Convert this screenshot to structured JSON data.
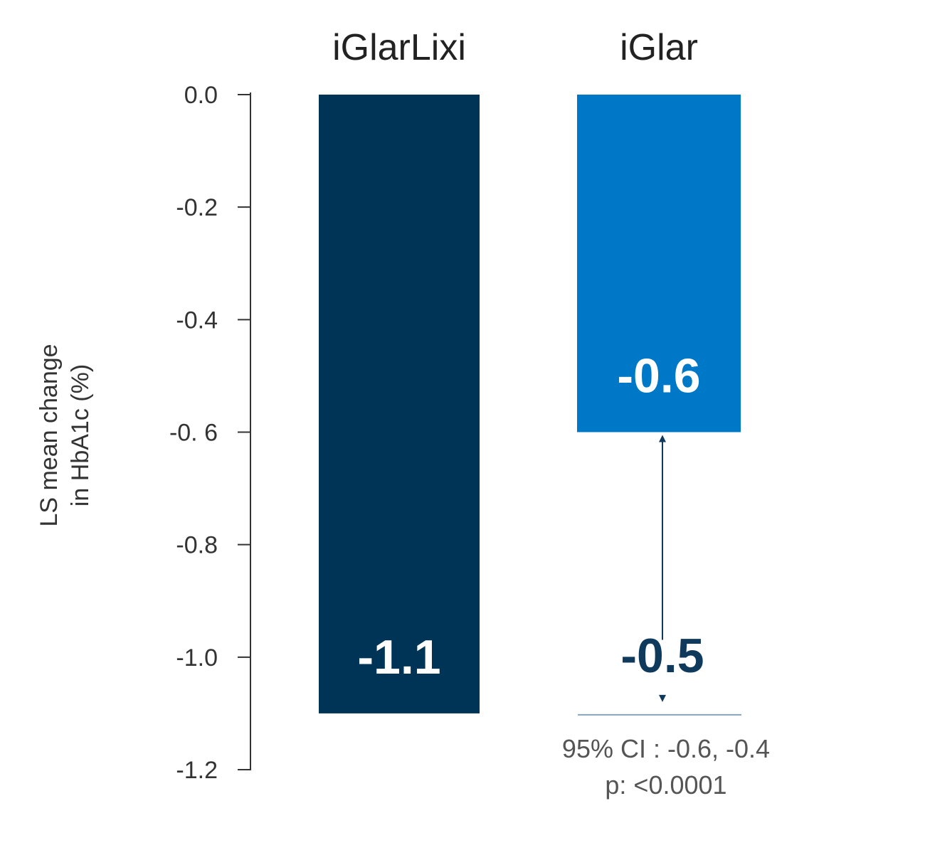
{
  "chart_data": {
    "type": "bar",
    "categories": [
      "iGlarLixi",
      "iGlar"
    ],
    "values": [
      -1.1,
      -0.6
    ],
    "value_labels": [
      "-1.1",
      "-0.6"
    ],
    "colors": [
      "#003457",
      "#0078c8"
    ],
    "ylabel_lines": [
      "LS mean change",
      "in HbA1c (%)"
    ],
    "ylim": [
      -1.2,
      0
    ],
    "y_ticks": [
      0,
      -0.2,
      -0.4,
      -0.6,
      -0.8,
      -1.0,
      -1.2
    ],
    "y_tick_labels": [
      "0.0",
      "-0.2",
      "-0.4",
      "-0. 6",
      "-0.8",
      "-1.0",
      "-1.2"
    ],
    "grid": false,
    "annotation": {
      "difference": -0.5,
      "difference_label": "-0.5",
      "from_value": -0.6,
      "to_value": -1.1,
      "color": "#0f3a5c",
      "ci_text": "95% CI : -0.6, -0.4",
      "p_text": "p: <0.0001"
    }
  }
}
